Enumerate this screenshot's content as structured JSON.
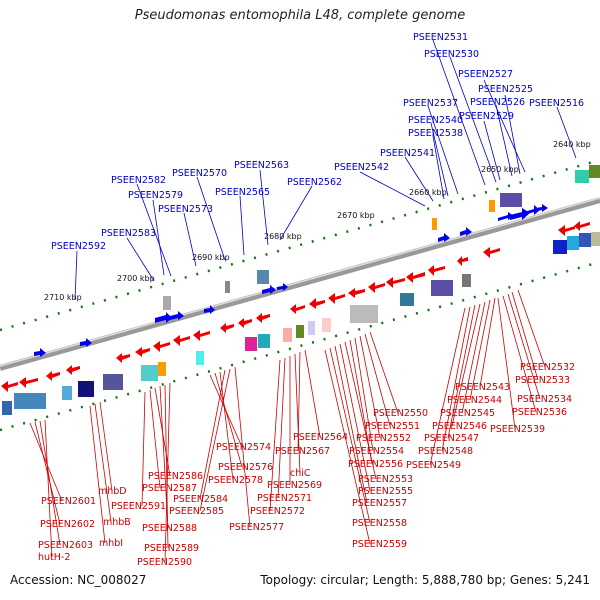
{
  "title": "Pseudomonas entomophila L48, complete genome",
  "footer": {
    "accession": "Accession: NC_008027",
    "topology": "Topology: circular; Length: 5,888,780 bp; Genes: 5,241"
  },
  "colors": {
    "upper_labels": "#0000cc",
    "lower_labels": "#cc0000",
    "forward_strand": "#0000ee",
    "reverse_strand": "#ee0000",
    "ticks": "#117711",
    "backbone": "#888888"
  },
  "scale_labels": [
    "2640 kbp",
    "2650 kbp",
    "2660 kbp",
    "2670 kbp",
    "2680 kbp",
    "2690 kbp",
    "2700 kbp",
    "2710 kbp"
  ],
  "upper_genes": [
    "PSEEN2531",
    "PSEEN2530",
    "PSEEN2527",
    "PSEEN2525",
    "PSEEN2526",
    "PSEEN2537",
    "PSEEN2516",
    "PSEEN2540",
    "PSEEN2529",
    "PSEEN2538",
    "PSEEN2541",
    "PSEEN2563",
    "PSEEN2542",
    "PSEEN2570",
    "PSEEN2582",
    "PSEEN2562",
    "PSEEN2565",
    "PSEEN2579",
    "PSEEN2573",
    "PSEEN2583",
    "PSEEN2592"
  ],
  "lower_genes": [
    "PSEEN2532",
    "PSEEN2533",
    "PSEEN2543",
    "PSEEN2534",
    "PSEEN2544",
    "PSEEN2550",
    "PSEEN2545",
    "PSEEN2536",
    "PSEEN2551",
    "PSEEN2546",
    "PSEEN2539",
    "PSEEN2552",
    "PSEEN2547",
    "PSEEN2564",
    "PSEEN2554",
    "PSEEN2548",
    "PSEEN2556",
    "PSEEN2549",
    "PSEEN2574",
    "PSEEN2567",
    "PSEEN2576",
    "PSEEN2553",
    "PSEEN2586",
    "chiC",
    "PSEEN2578",
    "PSEEN2569",
    "mhbD",
    "PSEEN2587",
    "PSEEN2555",
    "PSEEN2591",
    "PSEEN2584",
    "PSEEN2571",
    "PSEEN2601",
    "PSEEN2557",
    "PSEEN2585",
    "PSEEN2572",
    "mhbB",
    "PSEEN2602",
    "PSEEN2588",
    "PSEEN2577",
    "PSEEN2558",
    "mhbI",
    "PSEEN2603",
    "PSEEN2589",
    "PSEEN2559",
    "hutH-2",
    "PSEEN2590"
  ]
}
